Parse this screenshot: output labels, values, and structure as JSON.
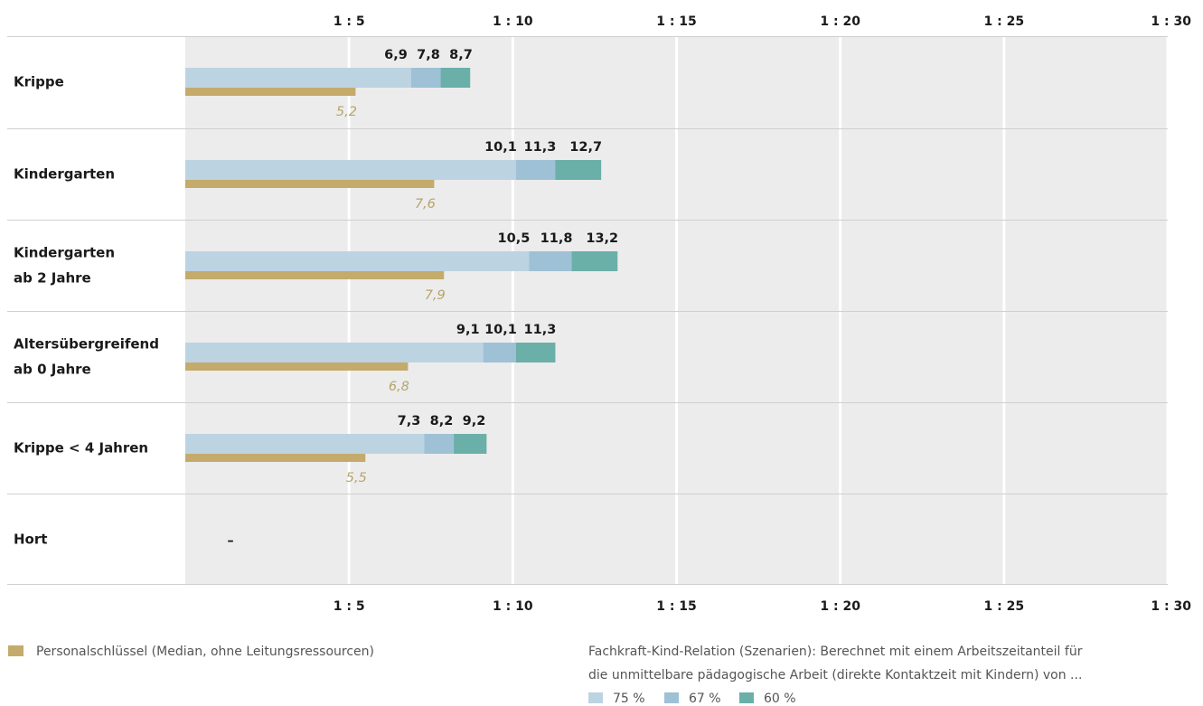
{
  "chart_data": {
    "type": "bar",
    "orientation": "horizontal",
    "categories": [
      [
        "Krippe"
      ],
      [
        "Kindergarten"
      ],
      [
        "Kindergarten",
        "ab 2 Jahre"
      ],
      [
        "Altersübergreifend",
        "ab 0 Jahre"
      ],
      [
        "Krippe < 4 Jahren"
      ],
      [
        "Hort"
      ]
    ],
    "x_ticks": [
      5,
      10,
      15,
      20,
      25,
      30
    ],
    "x_tick_labels": [
      "1 : 5",
      "1 : 10",
      "1 : 15",
      "1 : 20",
      "1 : 25",
      "1 : 30"
    ],
    "xlim": [
      0,
      30
    ],
    "grid": true,
    "scenarios": [
      {
        "name": "75 %",
        "color": "#bcd3e2",
        "values": [
          6.9,
          10.1,
          10.5,
          9.1,
          7.3,
          null
        ],
        "labels": [
          "6,9",
          "10,1",
          "10,5",
          "9,1",
          "7,3",
          ""
        ]
      },
      {
        "name": "67 %",
        "color": "#9ec1d6",
        "values": [
          7.8,
          11.3,
          11.8,
          10.1,
          8.2,
          null
        ],
        "labels": [
          "7,8",
          "11,3",
          "11,8",
          "10,1",
          "8,2",
          ""
        ]
      },
      {
        "name": "60 %",
        "color": "#6bafa9",
        "values": [
          8.7,
          12.7,
          13.2,
          11.3,
          9.2,
          null
        ],
        "labels": [
          "8,7",
          "12,7",
          "13,2",
          "11,3",
          "9,2",
          ""
        ]
      }
    ],
    "median": {
      "name": "Personalschlüssel (Median, ohne Leitungsressourcen)",
      "color": "#c4ab6c",
      "values": [
        5.2,
        7.6,
        7.9,
        6.8,
        5.5,
        null
      ],
      "labels": [
        "5,2",
        "7,6",
        "7,9",
        "6,8",
        "5,5",
        ""
      ]
    },
    "missing_label": "–",
    "legend_note": [
      "Fachkraft-Kind-Relation (Szenarien): Berechnet mit einem Arbeitszeitanteil für",
      "die unmittelbare pädagogische Arbeit  (direkte Kontaktzeit mit Kindern) von ..."
    ]
  }
}
